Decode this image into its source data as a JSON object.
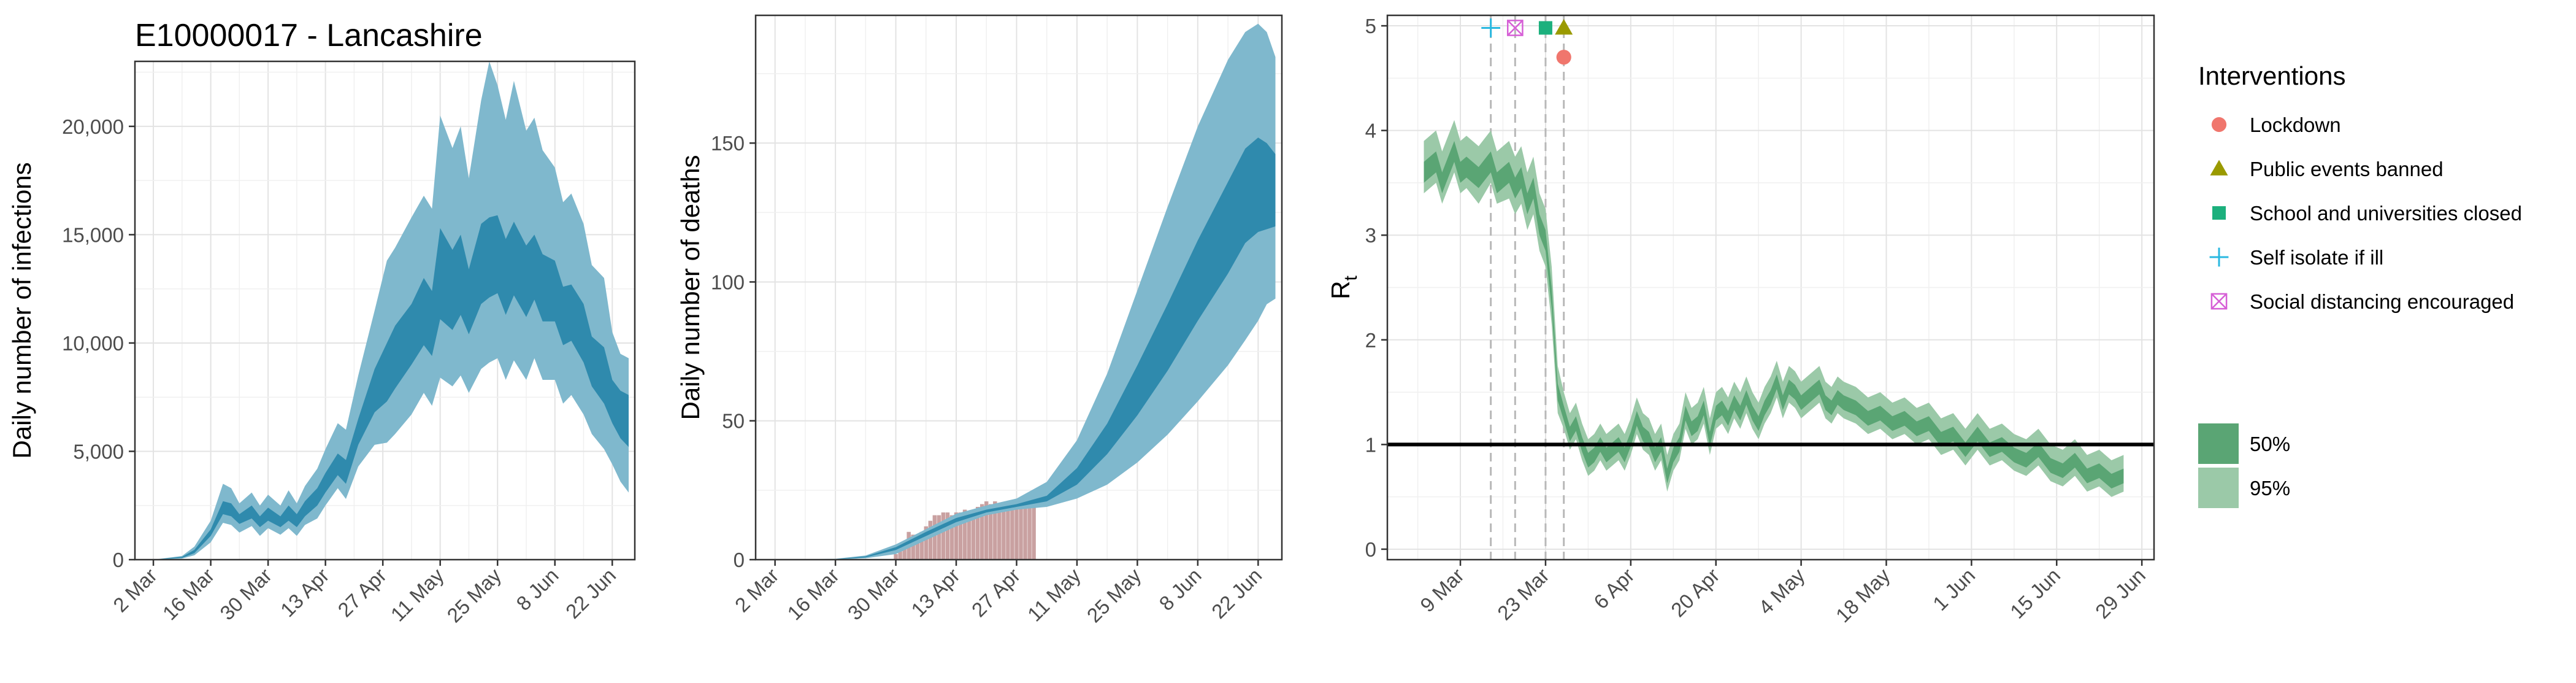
{
  "chart_data": [
    {
      "type": "area",
      "title": "E10000017 - Lancashire",
      "xlabel": "",
      "ylabel": "Daily number of infections",
      "x_ticks": [
        "2 Mar",
        "16 Mar",
        "30 Mar",
        "13 Apr",
        "27 Apr",
        "11 May",
        "25 May",
        "8 Jun",
        "22 Jun"
      ],
      "x_tick_days": [
        0,
        14,
        28,
        42,
        56,
        70,
        84,
        98,
        112
      ],
      "xlim_days": [
        -4.5,
        117.5
      ],
      "y_ticks": [
        0,
        5000,
        10000,
        15000,
        20000
      ],
      "y_tick_labels": [
        "0",
        "5,000",
        "10,000",
        "15,000",
        "20,000"
      ],
      "ylim": [
        0,
        23000
      ],
      "grid": true,
      "colors": {
        "band95": "#7fb8cd",
        "band50": "#2f8aad"
      },
      "series": {
        "day": [
          0,
          7,
          10,
          14,
          17,
          19,
          21,
          24,
          26,
          28,
          31,
          33,
          35,
          37,
          40,
          42,
          45,
          47,
          50,
          54,
          57,
          59,
          63,
          66,
          68,
          70,
          73,
          75,
          77,
          80,
          82,
          84,
          86,
          88,
          91,
          93,
          95,
          98,
          100,
          102,
          105,
          107,
          110,
          112,
          114,
          116
        ],
        "lo95": [
          0,
          50,
          200,
          800,
          1700,
          1600,
          1250,
          1550,
          1100,
          1450,
          1150,
          1450,
          1100,
          1600,
          1900,
          2500,
          3300,
          2800,
          4300,
          5300,
          5400,
          5800,
          6700,
          7700,
          7100,
          8400,
          8000,
          8500,
          7700,
          8800,
          9100,
          9300,
          8300,
          9200,
          8300,
          9300,
          8300,
          8300,
          7200,
          7600,
          6700,
          5800,
          5100,
          4400,
          3600,
          3100
        ],
        "lo50": [
          0,
          80,
          300,
          1100,
          2100,
          2000,
          1650,
          1900,
          1500,
          1800,
          1500,
          1800,
          1500,
          2000,
          2500,
          3100,
          3900,
          3500,
          5300,
          6800,
          7300,
          7900,
          9000,
          9900,
          9400,
          11100,
          10600,
          11300,
          10400,
          11800,
          12100,
          12300,
          11300,
          12200,
          11200,
          12000,
          11000,
          11000,
          9900,
          10100,
          9100,
          8000,
          7200,
          6300,
          5600,
          5200
        ],
        "hi50": [
          0,
          130,
          450,
          1400,
          2700,
          2600,
          2100,
          2500,
          2000,
          2400,
          2000,
          2500,
          2100,
          2700,
          3300,
          4000,
          4900,
          4600,
          6500,
          8800,
          10000,
          10800,
          11800,
          13000,
          12400,
          15300,
          14300,
          15000,
          13400,
          15500,
          15800,
          15900,
          14800,
          15600,
          14500,
          15000,
          14100,
          13800,
          12600,
          12700,
          11800,
          10300,
          9800,
          8300,
          7800,
          7600
        ],
        "hi95": [
          0,
          170,
          600,
          1800,
          3500,
          3300,
          2600,
          3100,
          2500,
          3000,
          2500,
          3200,
          2600,
          3400,
          4200,
          5100,
          6300,
          6000,
          8500,
          11500,
          13800,
          14400,
          15800,
          16800,
          16200,
          20500,
          19000,
          20000,
          17600,
          21200,
          23000,
          21900,
          20300,
          22100,
          19800,
          20400,
          18900,
          18100,
          16500,
          16900,
          15500,
          13600,
          13000,
          10500,
          9500,
          9300
        ]
      }
    },
    {
      "type": "bar",
      "title": "",
      "xlabel": "",
      "ylabel": "Daily number of deaths",
      "x_ticks": [
        "2 Mar",
        "16 Mar",
        "30 Mar",
        "13 Apr",
        "27 Apr",
        "11 May",
        "25 May",
        "8 Jun",
        "22 Jun"
      ],
      "x_tick_days": [
        0,
        14,
        28,
        42,
        56,
        70,
        84,
        98,
        112
      ],
      "xlim_days": [
        -4.5,
        117.5
      ],
      "y_ticks": [
        0,
        50,
        100,
        150
      ],
      "y_tick_labels": [
        "0",
        "50",
        "100",
        "150"
      ],
      "ylim": [
        0,
        196
      ],
      "grid": true,
      "colors": {
        "band95": "#7fb8cd",
        "band50": "#2f8aad",
        "bars": "#c09090"
      },
      "bars": {
        "day": [
          28,
          29,
          30,
          31,
          32,
          33,
          34,
          35,
          36,
          37,
          38,
          39,
          40,
          41,
          42,
          43,
          44,
          45,
          46,
          47,
          48,
          49,
          50,
          51,
          52,
          53,
          54,
          55,
          56,
          57,
          58,
          59,
          60
        ],
        "value": [
          2,
          3,
          5,
          10,
          9,
          8,
          10,
          12,
          14,
          16,
          16,
          17,
          17,
          16,
          17,
          17,
          18,
          17,
          18,
          19,
          20,
          21,
          20,
          21,
          20,
          20,
          20,
          19,
          20,
          19,
          20,
          19,
          19
        ]
      },
      "series": {
        "day": [
          0,
          14,
          21,
          28,
          35,
          42,
          49,
          56,
          63,
          70,
          77,
          84,
          91,
          98,
          105,
          109,
          112,
          114,
          116
        ],
        "lo95": [
          0,
          0,
          0.5,
          2,
          7,
          12,
          16,
          18,
          19,
          22,
          27,
          35,
          45,
          57,
          70,
          79,
          86,
          92,
          94
        ],
        "lo50": [
          0,
          0.1,
          0.8,
          3.5,
          8.5,
          13.5,
          17,
          19,
          21,
          27,
          38,
          52,
          68,
          86,
          103,
          114,
          118,
          119,
          120
        ],
        "hi50": [
          0,
          0.2,
          1.2,
          4.5,
          10,
          15,
          18,
          20,
          23,
          33,
          49,
          70,
          92,
          115,
          136,
          148,
          152,
          150,
          146
        ],
        "hi95": [
          0,
          0.3,
          1.5,
          5.5,
          11,
          16.5,
          19.5,
          22,
          28,
          43,
          67,
          97,
          127,
          156,
          180,
          190,
          193,
          190,
          181
        ]
      }
    },
    {
      "type": "area",
      "title": "",
      "xlabel": "",
      "ylabel": "R",
      "ylabel_subscript": "t",
      "x_ticks": [
        "9 Mar",
        "23 Mar",
        "6 Apr",
        "20 Apr",
        "4 May",
        "18 May",
        "1 Jun",
        "15 Jun",
        "29 Jun"
      ],
      "x_tick_days": [
        7,
        21,
        35,
        49,
        63,
        77,
        91,
        105,
        119
      ],
      "xlim_days": [
        -5,
        121
      ],
      "y_ticks": [
        0,
        1,
        2,
        3,
        4,
        5
      ],
      "y_tick_labels": [
        "0",
        "1",
        "2",
        "3",
        "4",
        "5"
      ],
      "ylim": [
        -0.1,
        5.1
      ],
      "grid": true,
      "reference_line": 1,
      "colors": {
        "band95": "#9bc9a8",
        "band50": "#5aa574",
        "line": "#000000",
        "vline": "#b8b8b8"
      },
      "series": {
        "day": [
          1,
          3,
          4,
          6,
          7,
          8,
          10,
          12,
          13,
          15,
          16,
          17,
          18,
          19,
          20,
          21,
          22,
          23,
          24,
          25,
          26,
          27,
          28,
          29,
          30,
          31,
          32,
          33,
          34,
          35,
          36,
          37,
          38,
          39,
          40,
          41,
          42,
          43,
          44,
          45,
          46,
          47,
          48,
          49,
          50,
          51,
          52,
          53,
          54,
          55,
          56,
          57,
          58,
          59,
          60,
          61,
          62,
          63,
          64,
          65,
          66,
          67,
          68,
          69,
          70,
          72,
          74,
          76,
          78,
          80,
          82,
          84,
          86,
          88,
          90,
          92,
          94,
          96,
          98,
          100,
          102,
          104,
          106,
          108,
          110,
          112,
          114,
          116
        ],
        "mid": [
          3.6,
          3.7,
          3.5,
          3.8,
          3.6,
          3.65,
          3.55,
          3.7,
          3.5,
          3.6,
          3.45,
          3.55,
          3.3,
          3.45,
          3.1,
          2.95,
          2.4,
          1.5,
          1.3,
          1.1,
          1.2,
          1.0,
          0.85,
          0.9,
          1.0,
          0.9,
          0.95,
          1.0,
          0.9,
          1.05,
          1.25,
          1.1,
          1.05,
          0.9,
          1.0,
          0.7,
          0.9,
          1.0,
          1.3,
          1.15,
          1.2,
          1.35,
          1.05,
          1.3,
          1.35,
          1.25,
          1.4,
          1.3,
          1.45,
          1.3,
          1.2,
          1.35,
          1.45,
          1.6,
          1.4,
          1.55,
          1.5,
          1.4,
          1.45,
          1.5,
          1.55,
          1.4,
          1.35,
          1.45,
          1.4,
          1.35,
          1.25,
          1.3,
          1.2,
          1.25,
          1.15,
          1.2,
          1.05,
          1.1,
          0.95,
          1.1,
          0.95,
          1.0,
          0.9,
          0.85,
          0.95,
          0.8,
          0.75,
          0.85,
          0.7,
          0.75,
          0.65,
          0.7
        ],
        "lo95": [
          3.4,
          3.5,
          3.3,
          3.6,
          3.4,
          3.45,
          3.3,
          3.5,
          3.3,
          3.35,
          3.2,
          3.3,
          3.05,
          3.2,
          2.85,
          2.7,
          2.15,
          1.3,
          1.15,
          0.95,
          1.05,
          0.85,
          0.7,
          0.75,
          0.85,
          0.75,
          0.8,
          0.85,
          0.75,
          0.9,
          1.1,
          0.95,
          0.9,
          0.75,
          0.85,
          0.55,
          0.75,
          0.85,
          1.15,
          1.0,
          1.05,
          1.2,
          0.9,
          1.15,
          1.2,
          1.1,
          1.25,
          1.15,
          1.3,
          1.15,
          1.05,
          1.2,
          1.3,
          1.45,
          1.25,
          1.4,
          1.35,
          1.25,
          1.3,
          1.35,
          1.4,
          1.25,
          1.2,
          1.3,
          1.25,
          1.2,
          1.1,
          1.15,
          1.05,
          1.1,
          1.0,
          1.05,
          0.9,
          0.95,
          0.8,
          0.95,
          0.8,
          0.85,
          0.75,
          0.7,
          0.8,
          0.65,
          0.6,
          0.7,
          0.55,
          0.6,
          0.5,
          0.55
        ],
        "lo50": [
          3.5,
          3.6,
          3.4,
          3.7,
          3.5,
          3.55,
          3.45,
          3.6,
          3.4,
          3.5,
          3.35,
          3.45,
          3.2,
          3.35,
          3.0,
          2.85,
          2.3,
          1.42,
          1.23,
          1.03,
          1.13,
          0.93,
          0.78,
          0.83,
          0.93,
          0.83,
          0.88,
          0.93,
          0.83,
          0.98,
          1.18,
          1.03,
          0.98,
          0.83,
          0.93,
          0.63,
          0.83,
          0.93,
          1.23,
          1.08,
          1.13,
          1.28,
          0.98,
          1.23,
          1.28,
          1.18,
          1.33,
          1.23,
          1.38,
          1.23,
          1.13,
          1.28,
          1.38,
          1.53,
          1.33,
          1.48,
          1.43,
          1.33,
          1.38,
          1.43,
          1.48,
          1.33,
          1.28,
          1.38,
          1.33,
          1.28,
          1.18,
          1.23,
          1.13,
          1.18,
          1.08,
          1.13,
          0.98,
          1.03,
          0.88,
          1.03,
          0.88,
          0.93,
          0.83,
          0.78,
          0.88,
          0.73,
          0.68,
          0.78,
          0.63,
          0.68,
          0.58,
          0.63
        ],
        "hi50": [
          3.7,
          3.8,
          3.6,
          3.9,
          3.7,
          3.75,
          3.65,
          3.8,
          3.6,
          3.7,
          3.55,
          3.65,
          3.4,
          3.55,
          3.2,
          3.05,
          2.5,
          1.58,
          1.37,
          1.17,
          1.27,
          1.07,
          0.92,
          0.97,
          1.07,
          0.97,
          1.02,
          1.07,
          0.97,
          1.12,
          1.32,
          1.17,
          1.12,
          0.97,
          1.07,
          0.77,
          0.97,
          1.07,
          1.37,
          1.22,
          1.27,
          1.42,
          1.12,
          1.37,
          1.42,
          1.32,
          1.47,
          1.37,
          1.52,
          1.37,
          1.27,
          1.42,
          1.52,
          1.67,
          1.47,
          1.62,
          1.57,
          1.47,
          1.52,
          1.57,
          1.62,
          1.47,
          1.42,
          1.52,
          1.47,
          1.42,
          1.32,
          1.37,
          1.27,
          1.32,
          1.22,
          1.27,
          1.12,
          1.17,
          1.02,
          1.17,
          1.02,
          1.07,
          0.97,
          0.92,
          1.02,
          0.87,
          0.82,
          0.92,
          0.77,
          0.82,
          0.72,
          0.77
        ],
        "hi95": [
          3.9,
          4.0,
          3.8,
          4.1,
          3.9,
          3.95,
          3.85,
          4.0,
          3.8,
          3.9,
          3.75,
          3.85,
          3.6,
          3.75,
          3.4,
          3.25,
          2.7,
          1.75,
          1.5,
          1.3,
          1.4,
          1.2,
          1.05,
          1.1,
          1.2,
          1.1,
          1.15,
          1.2,
          1.1,
          1.25,
          1.45,
          1.3,
          1.25,
          1.1,
          1.2,
          0.9,
          1.1,
          1.2,
          1.5,
          1.35,
          1.4,
          1.55,
          1.25,
          1.5,
          1.55,
          1.45,
          1.6,
          1.5,
          1.65,
          1.5,
          1.4,
          1.55,
          1.65,
          1.8,
          1.6,
          1.75,
          1.7,
          1.6,
          1.65,
          1.7,
          1.75,
          1.6,
          1.55,
          1.65,
          1.6,
          1.55,
          1.45,
          1.5,
          1.4,
          1.45,
          1.35,
          1.4,
          1.25,
          1.3,
          1.15,
          1.3,
          1.15,
          1.2,
          1.1,
          1.05,
          1.15,
          1.0,
          0.95,
          1.05,
          0.9,
          0.95,
          0.85,
          0.9
        ]
      },
      "interventions": [
        {
          "name": "Self isolate if ill",
          "day": 12,
          "r": 4.98,
          "shape": "plus",
          "color": "#29b8e0"
        },
        {
          "name": "Social distancing encouraged",
          "day": 16,
          "r": 4.98,
          "shape": "boxcross",
          "color": "#d65fd6"
        },
        {
          "name": "School and universities closed",
          "day": 21,
          "r": 4.98,
          "shape": "square",
          "color": "#1cb07d"
        },
        {
          "name": "Public events banned",
          "day": 24,
          "r": 4.98,
          "shape": "triangle",
          "color": "#9a9a00"
        },
        {
          "name": "Lockdown",
          "day": 24,
          "r": 4.7,
          "shape": "circle",
          "color": "#f0766d"
        }
      ],
      "legend": {
        "title": "Interventions",
        "items": [
          {
            "label": "Lockdown",
            "shape": "circle",
            "color": "#f0766d"
          },
          {
            "label": "Public events banned",
            "shape": "triangle",
            "color": "#9a9a00"
          },
          {
            "label": "School and universities closed",
            "shape": "square",
            "color": "#1cb07d"
          },
          {
            "label": "Self isolate if ill",
            "shape": "plus",
            "color": "#29b8e0"
          },
          {
            "label": "Social distancing encouraged",
            "shape": "boxcross",
            "color": "#d65fd6"
          }
        ],
        "bands": [
          {
            "label": "50%",
            "color": "#5aa574"
          },
          {
            "label": "95%",
            "color": "#9bc9a8"
          }
        ]
      }
    }
  ]
}
